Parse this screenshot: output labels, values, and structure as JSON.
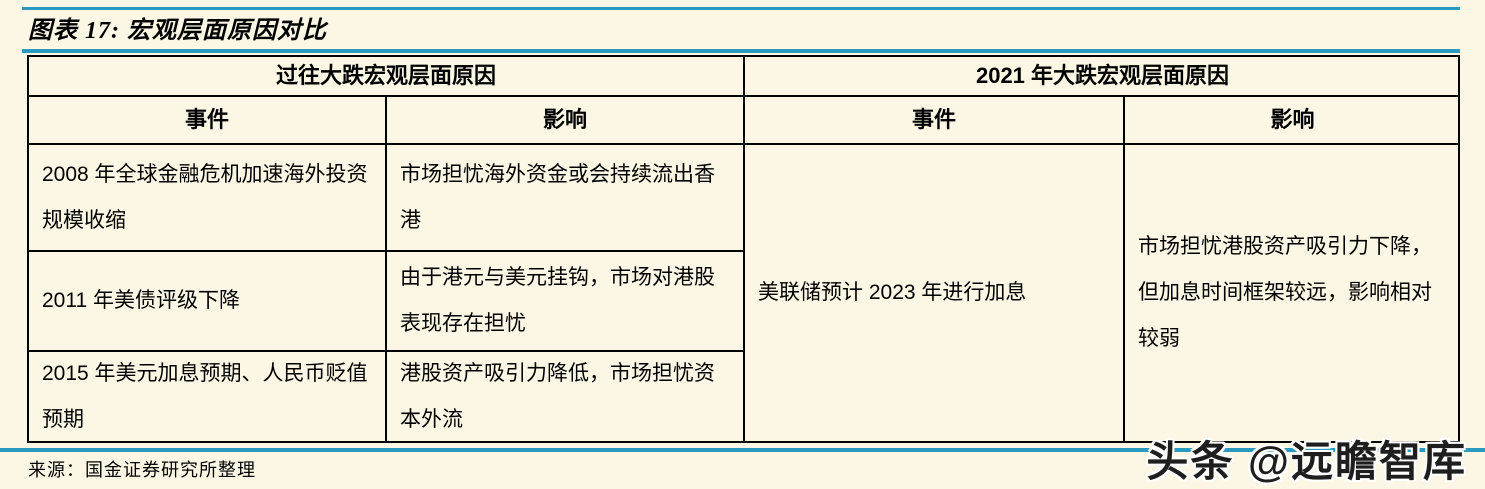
{
  "page": {
    "title": "图表 17: 宏观层面原因对比",
    "source": "来源：国金证券研究所整理",
    "watermark": "头条 @远瞻智库"
  },
  "table": {
    "group_headers": [
      {
        "label": "过往大跌宏观层面原因"
      },
      {
        "label": "2021 年大跌宏观层面原因"
      }
    ],
    "column_headers": [
      "事件",
      "影响",
      "事件",
      "影响"
    ],
    "past_rows": [
      {
        "event": "2008 年全球金融危机加速海外投资规模收缩",
        "impact": "市场担忧海外资金或会持续流出香港"
      },
      {
        "event": "2011 年美债评级下降",
        "impact": "由于港元与美元挂钩，市场对港股表现存在担忧"
      },
      {
        "event": "2015 年美元加息预期、人民币贬值预期",
        "impact": "港股资产吸引力降低，市场担忧资本外流"
      }
    ],
    "current": {
      "event": "美联储预计 2023 年进行加息",
      "impact": "市场担忧港股资产吸引力下降，但加息时间框架较远，影响相对较弱"
    }
  },
  "colors": {
    "background": "#FCF7E4",
    "rule_blue": "#2B9AC0",
    "border": "#000000",
    "text": "#000000"
  }
}
